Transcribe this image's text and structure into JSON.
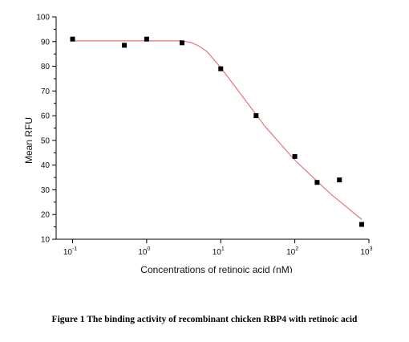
{
  "chart_data": {
    "type": "scatter",
    "title": "",
    "xlabel": "Concentrations of retinoic acid (nM)",
    "ylabel": "Mean RFU",
    "xscale": "log",
    "xlim": [
      0.06,
      1000
    ],
    "ylim": [
      10,
      100
    ],
    "yticks": [
      10,
      20,
      30,
      40,
      50,
      60,
      70,
      80,
      90,
      100
    ],
    "xticks": [
      {
        "value": 0.1,
        "base": "10",
        "exp": "-1"
      },
      {
        "value": 1,
        "base": "10",
        "exp": "0"
      },
      {
        "value": 10,
        "base": "10",
        "exp": "1"
      },
      {
        "value": 100,
        "base": "10",
        "exp": "2"
      },
      {
        "value": 1000,
        "base": "10",
        "exp": "3"
      }
    ],
    "grid": false,
    "legend": "none",
    "series": [
      {
        "marker": "square",
        "color": "#000000",
        "points": [
          {
            "x": 0.1,
            "y": 91
          },
          {
            "x": 0.5,
            "y": 88.5
          },
          {
            "x": 1,
            "y": 91
          },
          {
            "x": 3,
            "y": 89.5
          },
          {
            "x": 10,
            "y": 79
          },
          {
            "x": 30,
            "y": 60
          },
          {
            "x": 100,
            "y": 43.5
          },
          {
            "x": 200,
            "y": 33
          },
          {
            "x": 400,
            "y": 34
          },
          {
            "x": 800,
            "y": 16
          }
        ]
      }
    ],
    "fit_curve": {
      "color": "#e8747c",
      "points": [
        {
          "x": 0.1,
          "y": 90.3
        },
        {
          "x": 3,
          "y": 90.3
        },
        {
          "x": 4,
          "y": 89.6
        },
        {
          "x": 5,
          "y": 88.3
        },
        {
          "x": 6.5,
          "y": 86.0
        },
        {
          "x": 10,
          "y": 79.5
        },
        {
          "x": 20,
          "y": 67.5
        },
        {
          "x": 40,
          "y": 55.5
        },
        {
          "x": 100,
          "y": 42.0
        },
        {
          "x": 300,
          "y": 28.5
        },
        {
          "x": 800,
          "y": 18.0
        }
      ]
    }
  },
  "caption": "Figure 1 The binding activity of recombinant chicken RBP4 with retinoic acid"
}
